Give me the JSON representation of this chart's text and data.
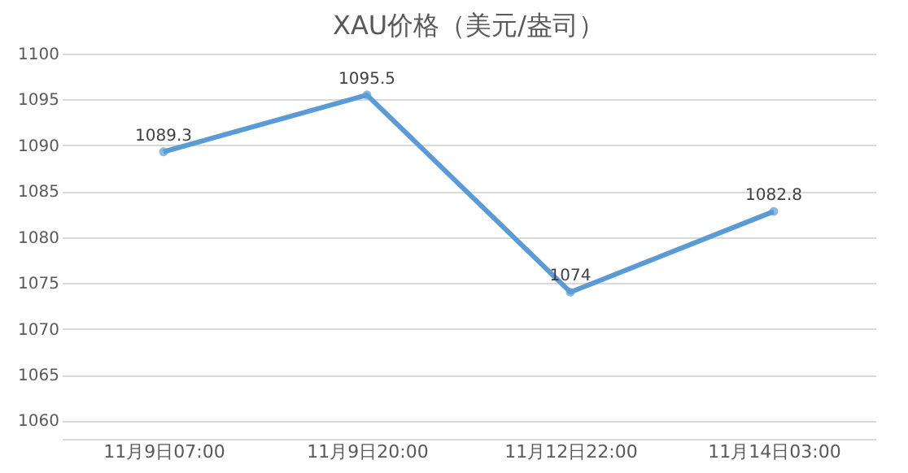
{
  "chart_data": {
    "type": "line",
    "title": "XAU价格（美元/盎司）",
    "categories": [
      "11月9日07:00",
      "11月9日20:00",
      "11月12日22:00",
      "11月14日03:00"
    ],
    "series": [
      {
        "color": "#5b9bd5",
        "values": [
          1089.3,
          1095.5,
          1074,
          1082.8
        ]
      }
    ],
    "ylim": [
      1058,
      1100
    ],
    "yticks": [
      1060,
      1065,
      1070,
      1075,
      1080,
      1085,
      1090,
      1095,
      1100
    ],
    "grid": "y",
    "data_labels": true,
    "marker": "circle",
    "line_style": "solid",
    "legend": false
  }
}
